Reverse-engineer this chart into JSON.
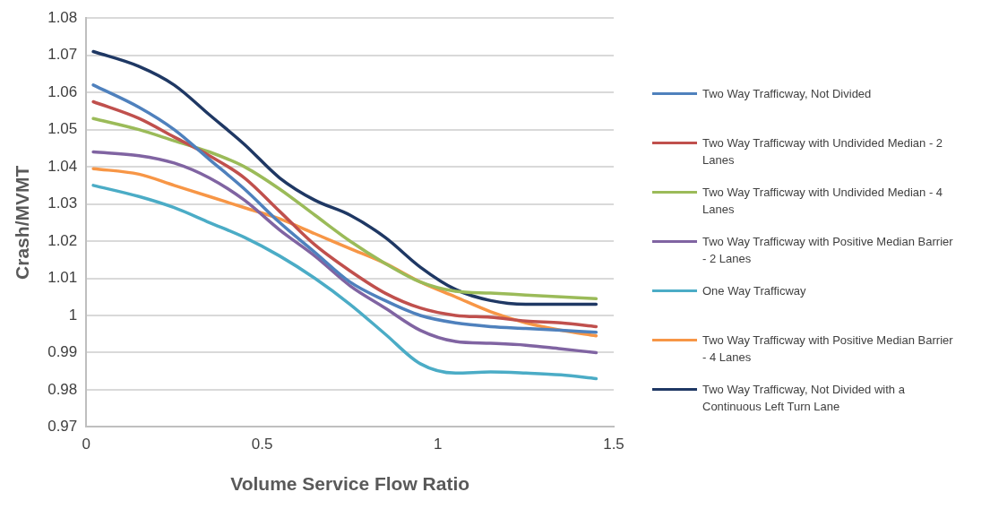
{
  "chart_data": {
    "type": "line",
    "xlabel": "Volume Service Flow Ratio",
    "ylabel": "Crash/MVMT",
    "x": [
      0.02,
      0.15,
      0.25,
      0.35,
      0.45,
      0.55,
      0.65,
      0.75,
      0.85,
      0.95,
      1.05,
      1.15,
      1.25,
      1.35,
      1.45
    ],
    "xlim": [
      0,
      1.5
    ],
    "xticks": [
      0,
      0.5,
      1,
      1.5
    ],
    "ylim": [
      0.97,
      1.08
    ],
    "yticks": [
      0.97,
      0.98,
      0.99,
      1,
      1.01,
      1.02,
      1.03,
      1.04,
      1.05,
      1.06,
      1.07,
      1.08
    ],
    "grid": "y",
    "legend": "right",
    "marker": "none",
    "line_style": "solid",
    "series": [
      {
        "name": "Two Way Trafficway, Not Divided",
        "color": "#4f81bd",
        "values": [
          1.062,
          1.056,
          1.05,
          1.042,
          1.034,
          1.025,
          1.017,
          1.009,
          1.004,
          1.0,
          0.998,
          0.997,
          0.9965,
          0.996,
          0.9955
        ]
      },
      {
        "name": "Two Way Trafficway with Undivided Median - 2 Lanes",
        "color": "#c0504d",
        "values": [
          1.0575,
          1.053,
          1.048,
          1.043,
          1.037,
          1.028,
          1.019,
          1.012,
          1.006,
          1.002,
          1.0,
          0.9995,
          0.9985,
          0.998,
          0.997
        ]
      },
      {
        "name": "Two Way Trafficway with Undivided Median - 4 Lanes",
        "color": "#9bbb59",
        "values": [
          1.053,
          1.05,
          1.047,
          1.044,
          1.04,
          1.034,
          1.027,
          1.02,
          1.014,
          1.009,
          1.0065,
          1.006,
          1.0055,
          1.005,
          1.0045
        ]
      },
      {
        "name": "Two Way Trafficway with Positive Median Barrier - 2 Lanes",
        "color": "#8064a2",
        "values": [
          1.044,
          1.043,
          1.041,
          1.037,
          1.031,
          1.023,
          1.016,
          1.008,
          1.002,
          0.996,
          0.993,
          0.9925,
          0.992,
          0.991,
          0.99
        ]
      },
      {
        "name": "One Way Trafficway",
        "color": "#4bacc6",
        "values": [
          1.035,
          1.032,
          1.029,
          1.025,
          1.021,
          1.016,
          1.01,
          1.003,
          0.995,
          0.987,
          0.9845,
          0.9848,
          0.9845,
          0.984,
          0.983
        ]
      },
      {
        "name": "Two Way Trafficway with Positive Median Barrier - 4 Lanes",
        "color": "#f79646",
        "values": [
          1.0395,
          1.038,
          1.035,
          1.032,
          1.029,
          1.026,
          1.022,
          1.018,
          1.014,
          1.009,
          1.005,
          1.001,
          0.998,
          0.996,
          0.9945
        ]
      },
      {
        "name": "Two Way Trafficway, Not Divided with a Continuous Left Turn Lane",
        "color": "#1f3864",
        "values": [
          1.071,
          1.067,
          1.062,
          1.054,
          1.046,
          1.037,
          1.031,
          1.027,
          1.021,
          1.013,
          1.007,
          1.004,
          1.003,
          1.003,
          1.003
        ]
      }
    ]
  }
}
